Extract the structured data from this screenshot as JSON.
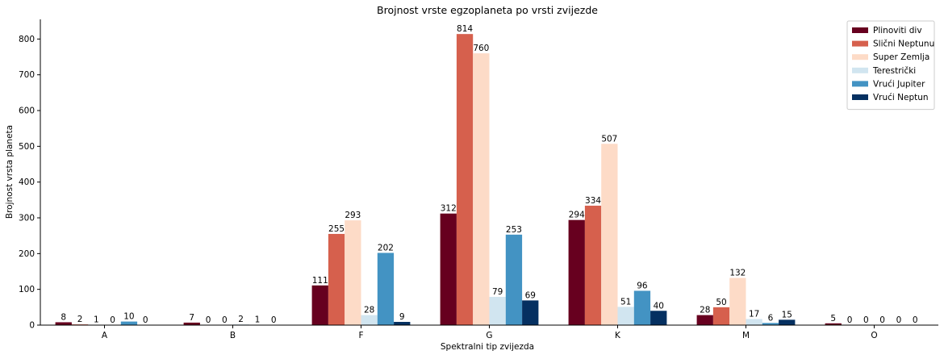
{
  "chart_data": {
    "type": "bar",
    "title": "Brojnost vrste egzoplaneta po vrsti zvijezde",
    "xlabel": "Spektralni tip zvijezda",
    "ylabel": "Brojnost vrsta planeta",
    "categories": [
      "A",
      "B",
      "F",
      "G",
      "K",
      "M",
      "O"
    ],
    "ylim": [
      0,
      855
    ],
    "yticks": [
      0,
      100,
      200,
      300,
      400,
      500,
      600,
      700,
      800
    ],
    "grid": false,
    "legend_position": "top-right",
    "series": [
      {
        "name": "Plinoviti div",
        "color": "#67001f",
        "values": [
          8,
          7,
          111,
          312,
          294,
          28,
          5
        ]
      },
      {
        "name": "Slični Neptunu",
        "color": "#d6604d",
        "values": [
          2,
          0,
          255,
          814,
          334,
          50,
          0
        ]
      },
      {
        "name": "Super Zemlja",
        "color": "#fddbc7",
        "values": [
          1,
          0,
          293,
          760,
          507,
          132,
          0
        ]
      },
      {
        "name": "Terestrički",
        "color": "#d1e5f0",
        "values": [
          0,
          2,
          28,
          79,
          51,
          17,
          0
        ]
      },
      {
        "name": "Vrući Jupiter",
        "color": "#4393c3",
        "values": [
          10,
          1,
          202,
          253,
          96,
          6,
          0
        ]
      },
      {
        "name": "Vrući Neptun",
        "color": "#053061",
        "values": [
          0,
          0,
          9,
          69,
          40,
          15,
          0
        ]
      }
    ]
  }
}
